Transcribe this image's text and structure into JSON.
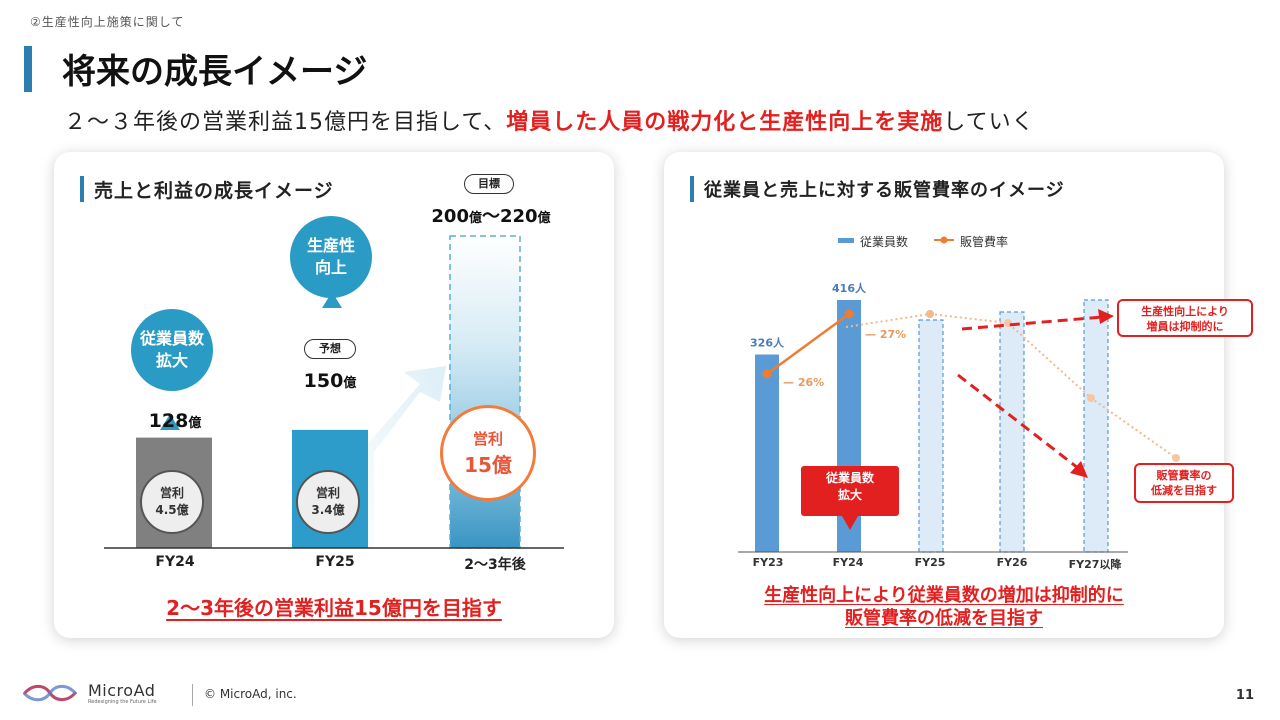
{
  "header": {
    "section": "②生産性向上施策に関して",
    "title": "将来の成長イメージ",
    "subtitle_plain": "２～３年後の営業利益15億円を目指して、",
    "subtitle_highlight": "増員した人員の戦力化と生産性向上を実施",
    "subtitle_tail": "していく"
  },
  "left_panel": {
    "title": "売上と利益の成長イメージ",
    "bubbles": {
      "fy24": "従業員数\n拡大",
      "fy25": "生産性\n向上"
    },
    "pills": {
      "forecast": "予想",
      "target": "目標"
    },
    "values": {
      "fy24_num": "128",
      "fy25_num": "150",
      "unit": "億",
      "target_a": "200",
      "target_b": "～220"
    },
    "profits": {
      "fy24": "営利\n4.5億",
      "fy25": "営利\n3.4億",
      "target_label": "営利",
      "target_value": "15億"
    },
    "conclusion": "2～3年後の営業利益15億円を目指す",
    "colors": {
      "fy24_bar": "#808080",
      "fy25_bar": "#2e9cca",
      "target_fill": "#5aaed6",
      "target_circle": "#f47b3a",
      "accent": "#e32020"
    }
  },
  "right_panel": {
    "title": "従業員と売上に対する販管費率のイメージ",
    "annotation_callout": "従業員数\n拡大",
    "box_upper": "生産性向上により\n増員は抑制的に",
    "box_lower": "販管費率の\n低減を目指す",
    "conclusion_line1": "生産性向上により従業員数の増加は抑制的に",
    "conclusion_line2": "販管費率の低減を目指す"
  },
  "chart_data": [
    {
      "type": "bar",
      "categories": [
        "FY24",
        "FY25",
        "2～3年後"
      ],
      "series": [
        {
          "name": "売上",
          "values": [
            128,
            150,
            210
          ]
        }
      ],
      "value_labels": [
        "128億",
        "150億",
        "200億～220億"
      ],
      "profit_values": [
        4.5,
        3.4,
        15
      ],
      "ylim": [
        0,
        240
      ]
    },
    {
      "type": "bar",
      "categories": [
        "FY23",
        "FY24",
        "FY25",
        "FY26",
        "FY27以降"
      ],
      "series": [
        {
          "name": "従業員数",
          "values": [
            326,
            416,
            null,
            null,
            null
          ],
          "projected_styled": [
            false,
            false,
            true,
            true,
            true
          ]
        },
        {
          "name": "販管費率",
          "type": "line",
          "values": [
            26,
            27,
            null,
            null,
            null
          ],
          "unit": "%",
          "projection": "decreasing"
        }
      ],
      "data_labels": {
        "employees": [
          "326人",
          "416人"
        ],
        "ratio": [
          "26%",
          "27%"
        ]
      },
      "legend": [
        "従業員数",
        "販管費率"
      ],
      "legend_position": "top",
      "grid": false,
      "colors": {
        "employees": "#5b9bd5",
        "ratio": "#ed7d31",
        "projected_fill": "#ddeaf7",
        "arrow": "#e32020"
      }
    }
  ],
  "footer": {
    "brand": "MicroAd",
    "tagline": "Redesigning the Future Life",
    "copyright": "© MicroAd, inc.",
    "page": "11"
  }
}
